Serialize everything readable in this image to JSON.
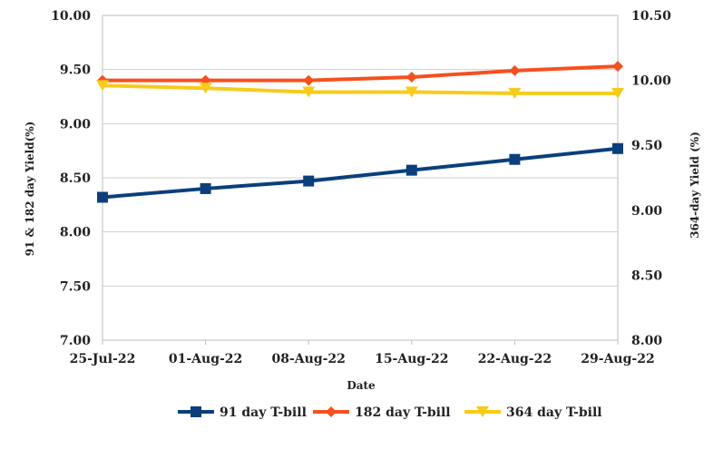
{
  "chart_data": {
    "type": "line",
    "title": "",
    "xlabel": "Date",
    "ylabel_left": "91 & 182 day Yield(%)",
    "ylabel_right": "364-day Yield (%)",
    "categories": [
      "25-Jul-22",
      "01-Aug-22",
      "08-Aug-22",
      "15-Aug-22",
      "22-Aug-22",
      "29-Aug-22"
    ],
    "y_left": {
      "min": 7.0,
      "max": 10.0,
      "ticks": [
        "7.00",
        "7.50",
        "8.00",
        "8.50",
        "9.00",
        "9.50",
        "10.00"
      ]
    },
    "y_right": {
      "min": 8.0,
      "max": 10.5,
      "ticks": [
        "8.00",
        "8.50",
        "9.00",
        "9.50",
        "10.00",
        "10.50"
      ]
    },
    "grid": true,
    "legend_position": "bottom",
    "series": [
      {
        "name": "91 day T-bill",
        "axis": "left",
        "color": "#0b3f7c",
        "marker": "square",
        "values": [
          8.32,
          8.4,
          8.47,
          8.57,
          8.67,
          8.77
        ]
      },
      {
        "name": "182 day T-bill",
        "axis": "left",
        "color": "#f5501e",
        "marker": "diamond",
        "values": [
          9.4,
          9.4,
          9.4,
          9.43,
          9.49,
          9.53
        ]
      },
      {
        "name": "364 day T-bill",
        "axis": "right",
        "color": "#f7cb1c",
        "marker": "triangle-down",
        "values": [
          9.96,
          9.94,
          9.91,
          9.91,
          9.9,
          9.9
        ]
      }
    ]
  }
}
